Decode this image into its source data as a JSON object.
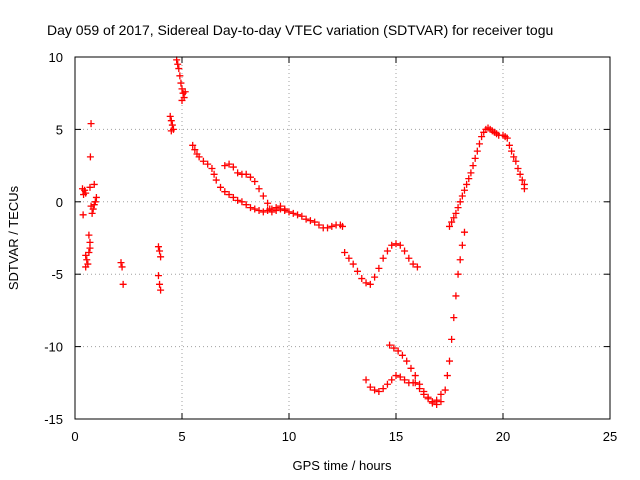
{
  "chart_data": {
    "type": "scatter",
    "title": "Day 059 of 2017, Sidereal Day-to-day VTEC variation (SDTVAR) for receiver togu",
    "xlabel": "GPS time / hours",
    "ylabel": "SDTVAR / TECUs",
    "xlim": [
      0,
      25
    ],
    "ylim": [
      -15,
      10
    ],
    "xticks": [
      0,
      5,
      10,
      15,
      20,
      25
    ],
    "yticks": [
      -15,
      -10,
      -5,
      0,
      5,
      10
    ],
    "xtick_labels": [
      "0",
      "5",
      "10",
      "15",
      "20",
      "25"
    ],
    "ytick_labels": [
      "-15",
      "-10",
      "-5",
      "0",
      "5",
      "10"
    ],
    "grid": true,
    "marker": "+",
    "series": [
      {
        "name": "SDTVAR",
        "color": "#ff0000",
        "points": [
          [
            0.35,
            0.9
          ],
          [
            0.4,
            0.5
          ],
          [
            0.45,
            0.8
          ],
          [
            0.5,
            0.6
          ],
          [
            0.38,
            -0.9
          ],
          [
            0.5,
            -3.7
          ],
          [
            0.55,
            -4.0
          ],
          [
            0.6,
            -4.3
          ],
          [
            0.5,
            -4.5
          ],
          [
            0.65,
            -3.5
          ],
          [
            0.7,
            -3.2
          ],
          [
            0.65,
            -2.3
          ],
          [
            0.7,
            -2.8
          ],
          [
            0.75,
            -0.3
          ],
          [
            0.8,
            -0.8
          ],
          [
            0.85,
            -0.5
          ],
          [
            0.9,
            -0.2
          ],
          [
            0.95,
            0.0
          ],
          [
            1.0,
            0.3
          ],
          [
            0.9,
            1.2
          ],
          [
            0.7,
            1.0
          ],
          [
            0.72,
            3.1
          ],
          [
            0.75,
            5.4
          ],
          [
            2.15,
            -4.2
          ],
          [
            2.2,
            -4.5
          ],
          [
            2.25,
            -5.7
          ],
          [
            3.9,
            -3.1
          ],
          [
            3.95,
            -3.4
          ],
          [
            4.0,
            -3.8
          ],
          [
            3.9,
            -5.1
          ],
          [
            3.95,
            -5.7
          ],
          [
            4.0,
            -6.1
          ],
          [
            4.45,
            5.9
          ],
          [
            4.5,
            5.6
          ],
          [
            4.55,
            5.3
          ],
          [
            4.6,
            5.0
          ],
          [
            4.5,
            4.9
          ],
          [
            4.75,
            9.8
          ],
          [
            4.8,
            9.5
          ],
          [
            4.85,
            9.2
          ],
          [
            4.9,
            8.7
          ],
          [
            4.95,
            8.2
          ],
          [
            5.0,
            7.8
          ],
          [
            5.05,
            7.5
          ],
          [
            5.1,
            7.2
          ],
          [
            5.0,
            7.0
          ],
          [
            5.15,
            7.6
          ],
          [
            5.5,
            3.9
          ],
          [
            5.6,
            3.6
          ],
          [
            5.7,
            3.3
          ],
          [
            5.8,
            3.1
          ],
          [
            6.0,
            2.8
          ],
          [
            6.2,
            2.6
          ],
          [
            6.4,
            2.3
          ],
          [
            6.5,
            1.9
          ],
          [
            6.6,
            1.5
          ],
          [
            6.8,
            1.0
          ],
          [
            7.0,
            0.7
          ],
          [
            7.2,
            0.5
          ],
          [
            7.4,
            0.3
          ],
          [
            7.6,
            0.1
          ],
          [
            7.8,
            0.0
          ],
          [
            8.0,
            -0.2
          ],
          [
            8.2,
            -0.4
          ],
          [
            8.4,
            -0.5
          ],
          [
            8.6,
            -0.6
          ],
          [
            8.8,
            -0.7
          ],
          [
            9.0,
            -0.6
          ],
          [
            9.2,
            -0.5
          ],
          [
            9.4,
            -0.4
          ],
          [
            9.6,
            -0.5
          ],
          [
            9.8,
            -0.6
          ],
          [
            10.0,
            -0.7
          ],
          [
            10.2,
            -0.8
          ],
          [
            10.4,
            -0.9
          ],
          [
            10.6,
            -1.0
          ],
          [
            10.8,
            -1.2
          ],
          [
            11.0,
            -1.3
          ],
          [
            11.2,
            -1.4
          ],
          [
            11.4,
            -1.6
          ],
          [
            11.6,
            -1.8
          ],
          [
            11.8,
            -1.8
          ],
          [
            12.0,
            -1.7
          ],
          [
            12.2,
            -1.6
          ],
          [
            12.4,
            -1.6
          ],
          [
            12.5,
            -1.7
          ],
          [
            7.0,
            2.5
          ],
          [
            7.2,
            2.6
          ],
          [
            7.4,
            2.4
          ],
          [
            7.6,
            2.0
          ],
          [
            7.8,
            1.9
          ],
          [
            8.0,
            1.9
          ],
          [
            8.2,
            1.7
          ],
          [
            8.4,
            1.4
          ],
          [
            8.6,
            0.9
          ],
          [
            8.8,
            0.4
          ],
          [
            9.0,
            -0.1
          ],
          [
            9.1,
            -0.5
          ],
          [
            9.2,
            -0.7
          ],
          [
            9.4,
            -0.6
          ],
          [
            9.6,
            -0.3
          ],
          [
            9.8,
            -0.5
          ],
          [
            12.6,
            -3.5
          ],
          [
            12.8,
            -3.9
          ],
          [
            13.0,
            -4.3
          ],
          [
            13.2,
            -4.8
          ],
          [
            13.4,
            -5.3
          ],
          [
            13.6,
            -5.6
          ],
          [
            13.8,
            -5.7
          ],
          [
            14.0,
            -5.2
          ],
          [
            14.2,
            -4.6
          ],
          [
            14.4,
            -3.9
          ],
          [
            14.6,
            -3.4
          ],
          [
            14.8,
            -3.0
          ],
          [
            15.0,
            -2.9
          ],
          [
            15.2,
            -3.0
          ],
          [
            15.4,
            -3.4
          ],
          [
            15.6,
            -3.9
          ],
          [
            15.8,
            -4.3
          ],
          [
            16.0,
            -4.5
          ],
          [
            13.6,
            -12.3
          ],
          [
            13.8,
            -12.8
          ],
          [
            14.0,
            -13.0
          ],
          [
            14.2,
            -13.1
          ],
          [
            14.4,
            -12.9
          ],
          [
            14.6,
            -12.6
          ],
          [
            14.8,
            -12.3
          ],
          [
            15.0,
            -12.0
          ],
          [
            15.2,
            -12.1
          ],
          [
            15.4,
            -12.3
          ],
          [
            15.6,
            -12.5
          ],
          [
            15.8,
            -12.5
          ],
          [
            14.7,
            -9.9
          ],
          [
            14.9,
            -10.1
          ],
          [
            15.1,
            -10.3
          ],
          [
            15.3,
            -10.6
          ],
          [
            15.5,
            -11.0
          ],
          [
            15.7,
            -11.5
          ],
          [
            15.9,
            -12.0
          ],
          [
            16.1,
            -12.6
          ],
          [
            16.3,
            -13.1
          ],
          [
            16.5,
            -13.5
          ],
          [
            16.7,
            -13.8
          ],
          [
            16.9,
            -14.0
          ],
          [
            17.1,
            -13.8
          ],
          [
            17.3,
            -13.0
          ],
          [
            17.4,
            -12.0
          ],
          [
            17.5,
            -11.0
          ],
          [
            17.6,
            -9.5
          ],
          [
            17.7,
            -8.0
          ],
          [
            17.8,
            -6.5
          ],
          [
            17.9,
            -5.0
          ],
          [
            18.0,
            -4.0
          ],
          [
            18.1,
            -3.0
          ],
          [
            18.2,
            -2.1
          ],
          [
            15.9,
            -12.5
          ],
          [
            16.1,
            -12.9
          ],
          [
            16.3,
            -13.3
          ],
          [
            16.5,
            -13.6
          ],
          [
            16.7,
            -13.9
          ],
          [
            16.9,
            -13.7
          ],
          [
            17.1,
            -13.3
          ],
          [
            17.5,
            -1.7
          ],
          [
            17.6,
            -1.4
          ],
          [
            17.7,
            -1.1
          ],
          [
            17.8,
            -0.8
          ],
          [
            17.9,
            -0.4
          ],
          [
            18.0,
            0.0
          ],
          [
            18.1,
            0.4
          ],
          [
            18.2,
            0.8
          ],
          [
            18.3,
            1.2
          ],
          [
            18.4,
            1.6
          ],
          [
            18.5,
            2.0
          ],
          [
            18.6,
            2.5
          ],
          [
            18.7,
            3.0
          ],
          [
            18.8,
            3.5
          ],
          [
            18.9,
            4.0
          ],
          [
            19.0,
            4.5
          ],
          [
            19.1,
            4.8
          ],
          [
            19.2,
            5.0
          ],
          [
            19.3,
            5.1
          ],
          [
            19.4,
            5.0
          ],
          [
            19.5,
            4.9
          ],
          [
            19.6,
            4.8
          ],
          [
            19.7,
            4.7
          ],
          [
            19.8,
            4.6
          ],
          [
            20.0,
            4.6
          ],
          [
            20.1,
            4.5
          ],
          [
            20.2,
            4.4
          ],
          [
            20.3,
            3.9
          ],
          [
            20.4,
            3.5
          ],
          [
            20.5,
            3.1
          ],
          [
            20.6,
            2.8
          ],
          [
            20.7,
            2.3
          ],
          [
            20.8,
            1.9
          ],
          [
            20.9,
            1.5
          ],
          [
            21.0,
            1.2
          ],
          [
            21.0,
            0.9
          ]
        ]
      }
    ]
  }
}
